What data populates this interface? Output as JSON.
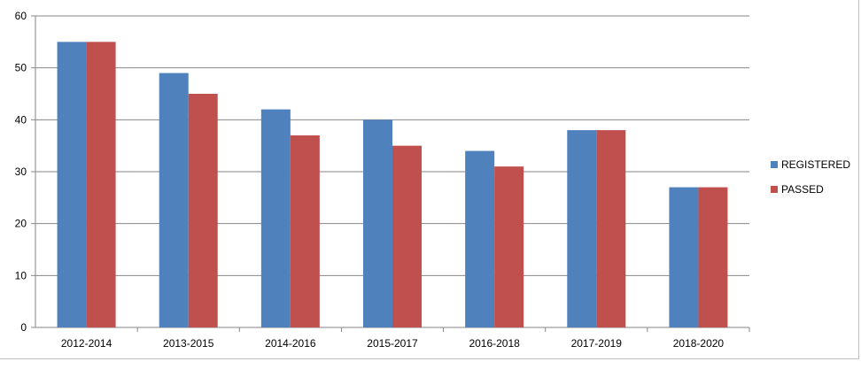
{
  "chart_data": {
    "type": "bar",
    "categories": [
      "2012-2014",
      "2013-2015",
      "2014-2016",
      "2015-2017",
      "2016-2018",
      "2017-2019",
      "2018-2020"
    ],
    "series": [
      {
        "name": "REGISTERED",
        "color": "#4f81bd",
        "values": [
          55,
          49,
          42,
          40,
          34,
          38,
          27
        ]
      },
      {
        "name": "PASSED",
        "color": "#c0504d",
        "values": [
          55,
          45,
          37,
          35,
          31,
          38,
          27
        ]
      }
    ],
    "yticks": [
      "0",
      "10",
      "20",
      "30",
      "40",
      "50",
      "60"
    ],
    "ylim": [
      0,
      60
    ],
    "grid": true,
    "legend_position": "right"
  }
}
